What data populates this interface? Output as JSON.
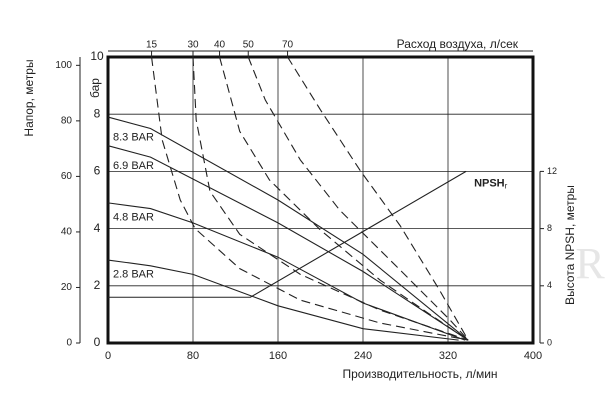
{
  "chart_data": {
    "type": "line",
    "x_label": "Производительность, л/мин",
    "y_label": "бар",
    "y_outer_label": "Напор, метры",
    "y2_label": "Высота NPSH, метры",
    "top_label": "Расход воздуха, л/сек",
    "watermark": "R",
    "xlim": [
      0,
      400
    ],
    "xticks": [
      0,
      80,
      160,
      240,
      320,
      400
    ],
    "ylim": [
      0,
      10
    ],
    "yticks": [
      0,
      2,
      4,
      6,
      8,
      10
    ],
    "y_outer_lim": [
      0,
      103
    ],
    "y_outer_ticks": [
      0,
      20,
      40,
      60,
      80,
      100
    ],
    "y2lim": [
      0,
      20
    ],
    "y2ticks": [
      0,
      4,
      8,
      12
    ],
    "grid": true,
    "series": [
      {
        "name": "8.3 BAR",
        "style": "solid",
        "color": "#222222",
        "x": [
          0,
          40,
          160,
          240,
          339
        ],
        "values": [
          7.9,
          7.5,
          5.0,
          3.1,
          0.1
        ]
      },
      {
        "name": "6.9 BAR",
        "style": "solid",
        "color": "#222222",
        "x": [
          0,
          40,
          160,
          240,
          339
        ],
        "values": [
          6.9,
          6.5,
          4.2,
          2.5,
          0.1
        ]
      },
      {
        "name": "4.8 BAR",
        "style": "solid",
        "color": "#222222",
        "x": [
          0,
          40,
          80,
          160,
          240,
          336
        ],
        "values": [
          4.9,
          4.7,
          4.2,
          3.0,
          1.4,
          0.1
        ]
      },
      {
        "name": "2.8 BAR",
        "style": "solid",
        "color": "#222222",
        "x": [
          0,
          40,
          80,
          160,
          240,
          330
        ],
        "values": [
          2.9,
          2.7,
          2.4,
          1.3,
          0.5,
          0.1
        ]
      },
      {
        "name": "15",
        "style": "dashed",
        "color": "#222222",
        "x": [
          41,
          51,
          68,
          82,
          124,
          181,
          256,
          339
        ],
        "values": [
          10,
          7.1,
          5.0,
          4.0,
          2.6,
          1.5,
          0.7,
          0.1
        ]
      },
      {
        "name": "30",
        "style": "dashed",
        "color": "#222222",
        "x": [
          80,
          83,
          96,
          124,
          181,
          256,
          339
        ],
        "values": [
          10,
          7.8,
          5.3,
          3.8,
          2.4,
          1.15,
          0.1
        ]
      },
      {
        "name": "40",
        "style": "dashed",
        "color": "#222222",
        "x": [
          105,
          124,
          152,
          200,
          256,
          303,
          339
        ],
        "values": [
          10,
          7.4,
          5.7,
          3.95,
          2.2,
          1.0,
          0.1
        ]
      },
      {
        "name": "50",
        "style": "dashed",
        "color": "#222222",
        "x": [
          132,
          148,
          181,
          218,
          275,
          322,
          339
        ],
        "values": [
          10,
          8.5,
          6.4,
          4.65,
          2.55,
          0.8,
          0.1
        ]
      },
      {
        "name": "70",
        "style": "dashed",
        "color": "#222222",
        "x": [
          169,
          200,
          237,
          275,
          312,
          339
        ],
        "values": [
          10,
          8.15,
          6.05,
          4.1,
          1.85,
          0.1
        ]
      },
      {
        "name": "NPSH",
        "subscript": "r",
        "style": "solid",
        "axis": "y2",
        "color": "#222222",
        "x": [
          0,
          134,
          337
        ],
        "values": [
          3.2,
          3.2,
          12
        ]
      }
    ]
  }
}
